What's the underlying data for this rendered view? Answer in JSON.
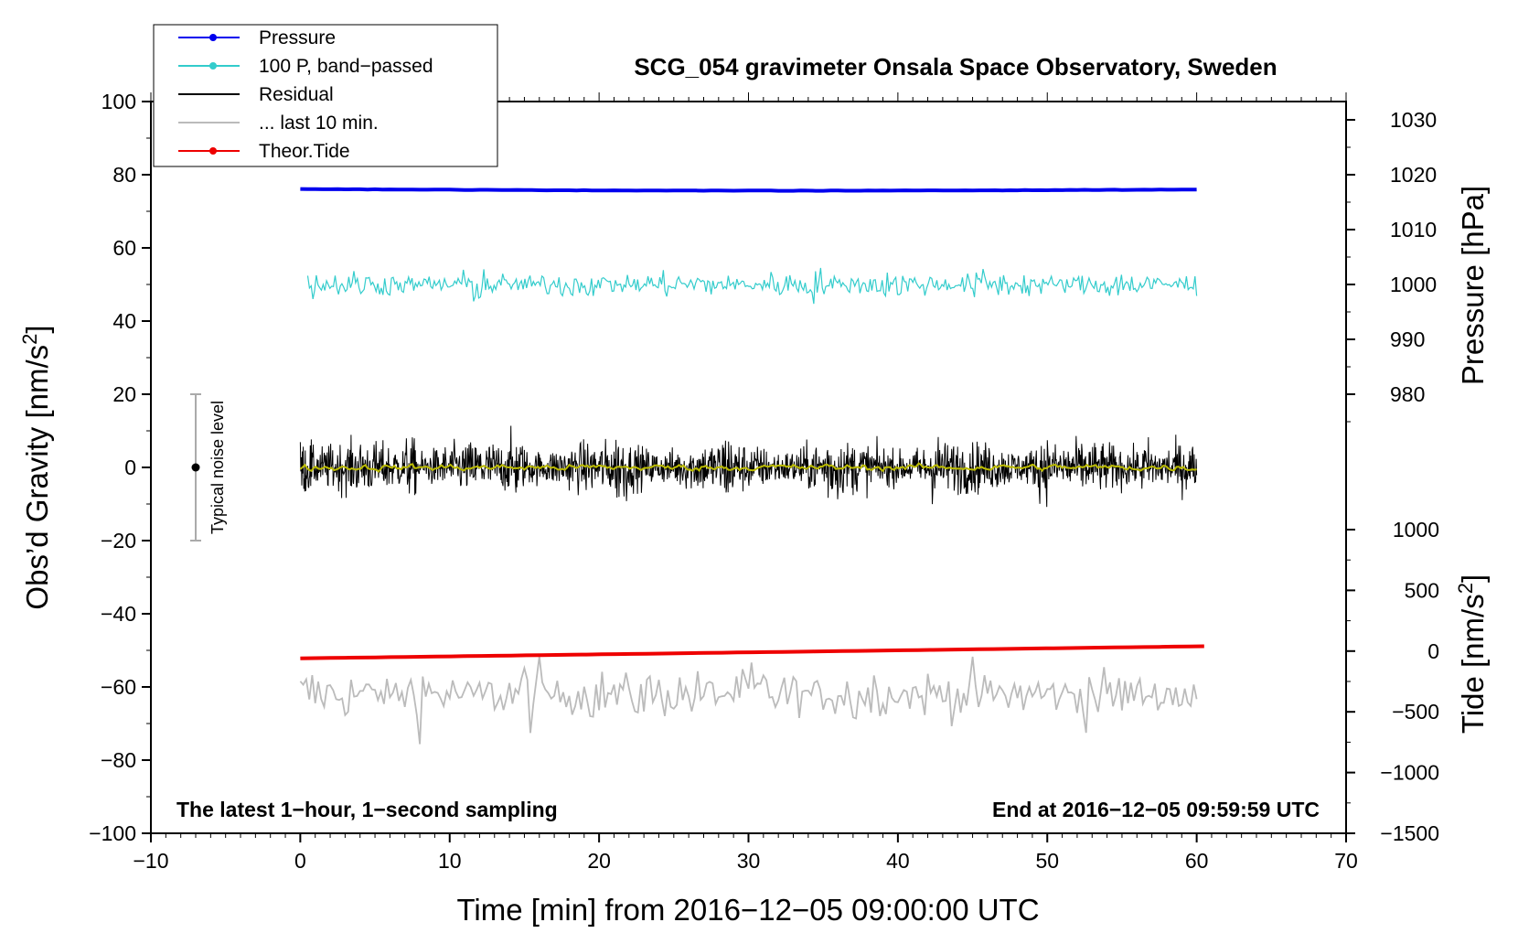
{
  "chart_data": {
    "type": "line",
    "title": "SCG_054 gravimeter Onsala Space Observatory, Sweden",
    "xlabel": "Time [min] from 2016−12−05 09:00:00 UTC",
    "ylabel_left": "Obs’d Gravity [nm/s",
    "ylabel_left_sup": "2",
    "ylabel_left_end": "]",
    "ylabel_right_top": "Pressure [hPa]",
    "ylabel_right_bottom": "Tide [nm/s",
    "ylabel_right_bottom_sup": "2",
    "ylabel_right_bottom_end": "]",
    "xlim": [
      -10,
      70
    ],
    "ylim": [
      -100,
      100
    ],
    "xticks": [
      -10,
      0,
      10,
      20,
      30,
      40,
      50,
      60,
      70
    ],
    "xtick_labels": [
      "−10",
      "0",
      "10",
      "20",
      "30",
      "40",
      "50",
      "60",
      "70"
    ],
    "yticks": [
      100,
      80,
      60,
      40,
      20,
      0,
      -20,
      -40,
      -60,
      -80,
      -100
    ],
    "ytick_labels": [
      "100",
      "80",
      "60",
      "40",
      "20",
      "0",
      "−20",
      "−40",
      "−60",
      "−80",
      "−100"
    ],
    "pressure_axis": {
      "ticks": [
        1030,
        1020,
        1010,
        1000,
        990,
        980
      ],
      "tick_labels": [
        "1030",
        "1020",
        "1010",
        "1000",
        "990",
        "980"
      ],
      "map_hpa": [
        980,
        1030
      ],
      "map_gravity": [
        20,
        95
      ]
    },
    "tide_axis": {
      "ticks": [
        1000,
        500,
        0,
        -500,
        -1000,
        -1500
      ],
      "tick_labels": [
        "1000",
        "500",
        "0",
        "−500",
        "−1000",
        "−1500"
      ],
      "map_tide": [
        -1500,
        1000
      ],
      "map_gravity": [
        -100,
        -17
      ]
    },
    "annotation_left": "The latest 1−hour, 1−second sampling",
    "annotation_right": "End at 2016−12−05 09:59:59 UTC",
    "noise_bar": {
      "x": -7,
      "center": 0,
      "half_range": 20,
      "label": "Typical noise level"
    },
    "legend": [
      {
        "label": "Pressure",
        "color": "#0000ee",
        "marker": true
      },
      {
        "label": "100 P, band−passed",
        "color": "#33cccc",
        "marker": true
      },
      {
        "label": "Residual",
        "color": "#000000",
        "marker": false
      },
      {
        "label": "... last 10 min.",
        "color": "#bbbbbb",
        "marker": false
      },
      {
        "label": "Theor.Tide",
        "color": "#ee0000",
        "marker": true
      }
    ],
    "series": [
      {
        "name": "Pressure",
        "color": "#0000ee",
        "axis": "pressure",
        "x_range": [
          0,
          60
        ],
        "start": 1017.4,
        "end": 1017.3,
        "mid_dip": 1017.1
      },
      {
        "name": "100 P, band-passed",
        "color": "#33cccc",
        "axis": "gravity",
        "x_range": [
          0.5,
          60
        ],
        "center": 50,
        "amplitude": 4
      },
      {
        "name": "Residual",
        "color": "#000000",
        "axis": "gravity",
        "x_range": [
          0,
          60
        ],
        "center": 0,
        "amplitude": 6
      },
      {
        "name": "Residual smoothed",
        "color": "#bbbb00",
        "axis": "gravity",
        "x_range": [
          0,
          60
        ],
        "center": 0,
        "amplitude": 1
      },
      {
        "name": "... last 10 min.",
        "color": "#bbbbbb",
        "axis": "gravity",
        "x_range": [
          0,
          60
        ],
        "center": -62,
        "amplitude": 7
      },
      {
        "name": "Theor.Tide",
        "color": "#ee0000",
        "axis": "tide",
        "x_range": [
          0,
          60.5
        ],
        "start": -60,
        "end": 40
      }
    ]
  }
}
